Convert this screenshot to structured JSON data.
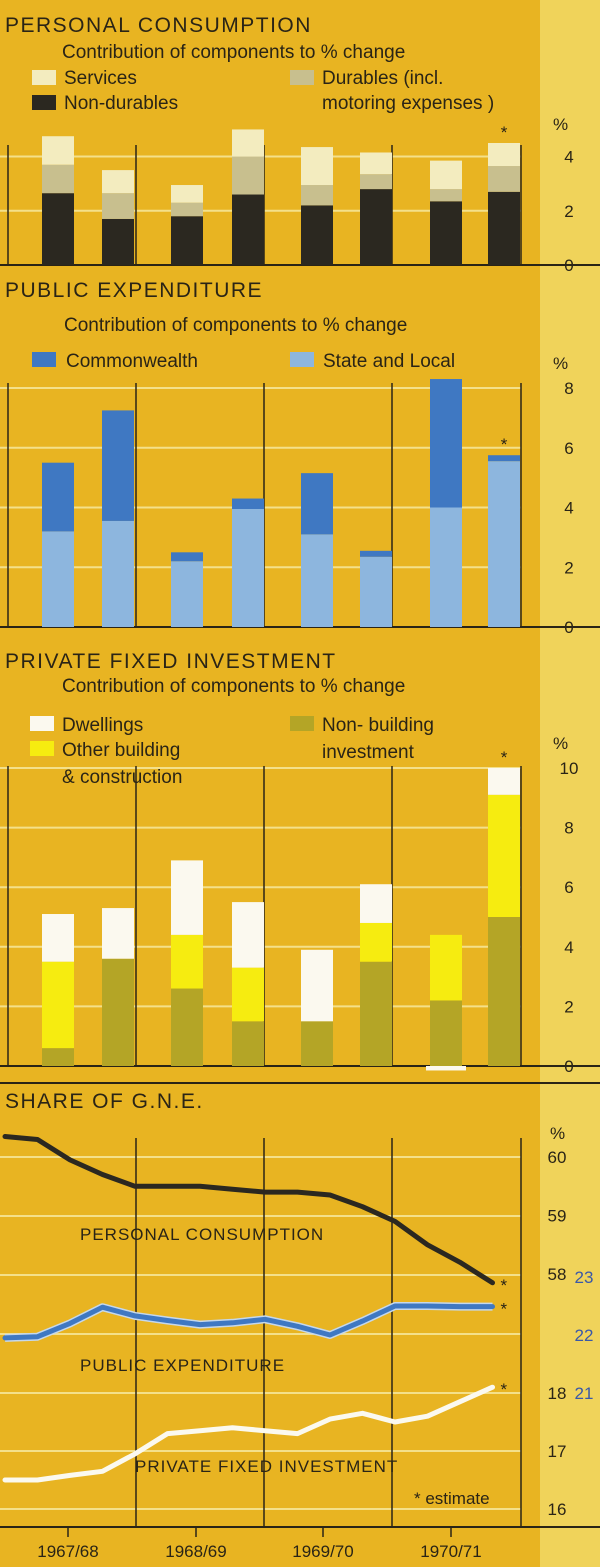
{
  "colors": {
    "background": "#e8b422",
    "side_strip": "#f0d35a",
    "grid": "#f4e08a",
    "axis": "#2a2416",
    "services": "#f3ecbf",
    "durables": "#c8bf8e",
    "non_durables": "#2b2820",
    "commonwealth": "#3f78c2",
    "state_local": "#8db6de",
    "dwellings": "#fbf9ef",
    "other_building": "#f6ec10",
    "non_building": "#b4a526",
    "personal_line": "#2b2820",
    "public_line": "#3f78c2",
    "public_edge": "#c5d8ec",
    "private_line": "#fbf9ef",
    "alt_tick": "#3a58a8"
  },
  "years": [
    "1967/68",
    "1968/69",
    "1969/70",
    "1970/71"
  ],
  "footnote": "* estimate",
  "chart_data": [
    {
      "id": "personal",
      "type": "bar",
      "stacked": true,
      "title": "PERSONAL CONSUMPTION",
      "subtitle": "Contribution of components to % change",
      "unit": "%",
      "ylim": [
        0,
        4.5
      ],
      "yticks": [
        0,
        2,
        4
      ],
      "grid": true,
      "estimate_index": 7,
      "legend": [
        {
          "key": "services",
          "label": "Services"
        },
        {
          "key": "non_durables",
          "label": "Non-durables"
        },
        {
          "key": "durables",
          "label": "Durables  (incl."
        },
        {
          "key": "durables_cont",
          "label": "motoring expenses )"
        }
      ],
      "series": [
        {
          "name": "Non-durables",
          "color_key": "non_durables",
          "values": [
            2.65,
            1.7,
            1.8,
            2.6,
            2.2,
            2.8,
            2.35,
            2.7
          ]
        },
        {
          "name": "Durables (incl. motoring expenses)",
          "color_key": "durables",
          "values": [
            1.05,
            0.95,
            0.5,
            1.4,
            0.75,
            0.55,
            0.45,
            0.95
          ]
        },
        {
          "name": "Services",
          "color_key": "services",
          "values": [
            1.05,
            0.85,
            0.65,
            1.0,
            1.4,
            0.8,
            1.05,
            0.85
          ]
        }
      ]
    },
    {
      "id": "public",
      "type": "bar",
      "stacked": true,
      "title": "PUBLIC  EXPENDITURE",
      "subtitle": "Contribution of components to % change",
      "unit": "%",
      "ylim": [
        0,
        8
      ],
      "yticks": [
        0,
        2,
        4,
        6,
        8
      ],
      "grid": true,
      "estimate_index": 7,
      "legend": [
        {
          "key": "commonwealth",
          "label": "Commonwealth"
        },
        {
          "key": "state_local",
          "label": "State and Local"
        }
      ],
      "series": [
        {
          "name": "State and Local",
          "color_key": "state_local",
          "values": [
            3.2,
            3.55,
            2.2,
            3.95,
            3.1,
            2.35,
            4.0,
            5.55
          ]
        },
        {
          "name": "Commonwealth",
          "color_key": "commonwealth",
          "values": [
            2.3,
            3.7,
            0.3,
            0.35,
            2.05,
            0.2,
            4.3,
            0.2
          ]
        }
      ]
    },
    {
      "id": "private",
      "type": "bar",
      "stacked": true,
      "title": "PRIVATE  FIXED  INVESTMENT",
      "subtitle": "Contribution of components to % change",
      "unit": "%",
      "ylim": [
        0,
        10
      ],
      "yticks": [
        0,
        2,
        4,
        6,
        8,
        10
      ],
      "grid": true,
      "estimate_index": 7,
      "legend": [
        {
          "key": "dwellings",
          "label": "Dwellings"
        },
        {
          "key": "other_building",
          "label": "Other building"
        },
        {
          "key": "other_building_cont",
          "label": "& construction"
        },
        {
          "key": "non_building",
          "label": "Non- building"
        },
        {
          "key": "non_building_cont",
          "label": "investment"
        }
      ],
      "series": [
        {
          "name": "Non-building investment",
          "color_key": "non_building",
          "values": [
            0.6,
            3.6,
            2.6,
            1.5,
            1.5,
            3.5,
            2.2,
            5.0
          ]
        },
        {
          "name": "Other building & construction",
          "color_key": "other_building",
          "values": [
            2.9,
            0.0,
            1.8,
            1.8,
            0.0,
            1.3,
            2.2,
            4.1
          ]
        },
        {
          "name": "Dwellings",
          "color_key": "dwellings",
          "values": [
            1.6,
            1.7,
            2.5,
            2.2,
            2.4,
            1.3,
            0.0,
            0.9
          ]
        }
      ],
      "negative": [
        0,
        0,
        0,
        0,
        0,
        0,
        -0.15,
        0
      ]
    },
    {
      "id": "share",
      "type": "line",
      "title": "SHARE  OF  G.N.E.",
      "unit": "%",
      "x": [
        0,
        0.5,
        1,
        1.5,
        2,
        2.5,
        3,
        3.5,
        4,
        4.5,
        5,
        5.5,
        6,
        6.5,
        7,
        7.5
      ],
      "estimate_index": 15,
      "yticks_personal": [
        58,
        59,
        60
      ],
      "yticks_lower": [
        16,
        17,
        18
      ],
      "yticks_alt": [
        21,
        22,
        23
      ],
      "series": [
        {
          "name": "PERSONAL  CONSUMPTION",
          "color_key": "personal_line",
          "scale": "personal",
          "values": [
            60.35,
            60.3,
            59.95,
            59.7,
            59.5,
            59.5,
            59.5,
            59.45,
            59.4,
            59.4,
            59.35,
            59.15,
            58.9,
            58.5,
            58.2,
            57.85
          ]
        },
        {
          "name": "PUBLIC  EXPENDITURE",
          "color_key": "public_line",
          "scale": "alt",
          "values": [
            21.95,
            21.97,
            22.2,
            22.48,
            22.33,
            22.25,
            22.18,
            22.21,
            22.27,
            22.15,
            22.0,
            22.24,
            22.5,
            22.5,
            22.49,
            22.49
          ]
        },
        {
          "name": "PRIVATE  FIXED  INVESTMENT",
          "color_key": "private_line",
          "scale": "lower",
          "values": [
            16.5,
            16.5,
            16.58,
            16.65,
            16.95,
            17.3,
            17.35,
            17.4,
            17.35,
            17.3,
            17.55,
            17.65,
            17.5,
            17.6,
            17.85,
            18.1
          ]
        }
      ]
    }
  ]
}
